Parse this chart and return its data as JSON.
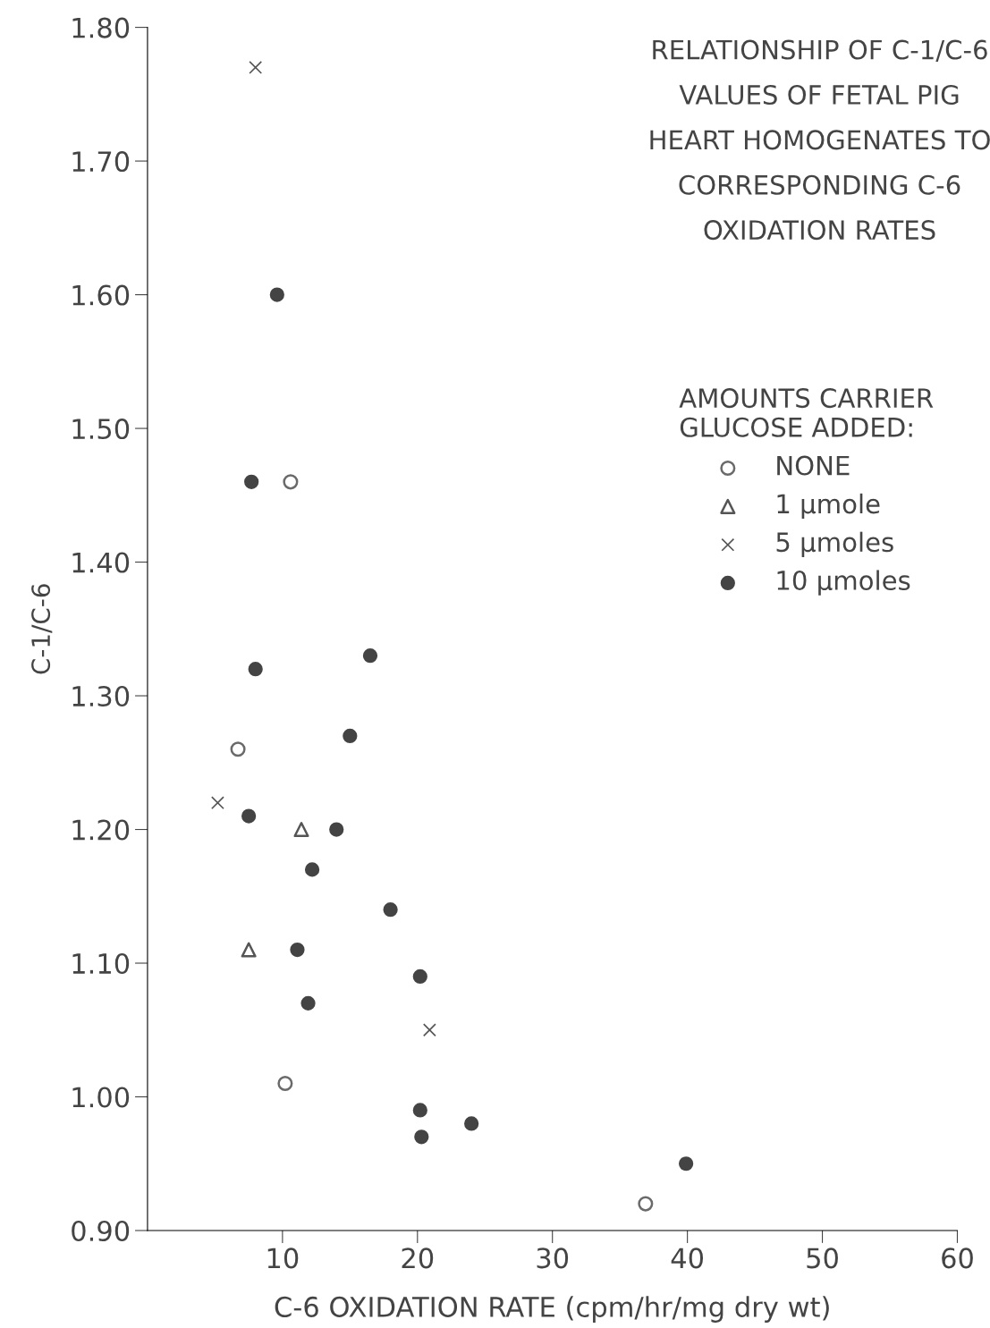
{
  "chart_data": {
    "type": "scatter",
    "title": "RELATIONSHIP OF C-1/C-6\nVALUES OF FETAL PIG\nHEART HOMOGENATES TO\nCORRESPONDING C-6\nOXIDATION RATES",
    "xlabel": "C-6 OXIDATION RATE (cpm/hr/mg dry wt)",
    "ylabel": "C-1/C-6",
    "legend_title": "AMOUNTS CARRIER\nGLUCOSE ADDED:",
    "legend": "top right",
    "xlim": [
      0,
      60
    ],
    "ylim": [
      0.9,
      1.8
    ],
    "xticks": [
      10,
      20,
      30,
      40,
      50,
      60
    ],
    "yticks": [
      {
        "value": 0.9,
        "label": "0.90"
      },
      {
        "value": 1.0,
        "label": "1.00"
      },
      {
        "value": 1.1,
        "label": "1.10"
      },
      {
        "value": 1.2,
        "label": "1.20"
      },
      {
        "value": 1.3,
        "label": "1.30"
      },
      {
        "value": 1.4,
        "label": "1.40"
      },
      {
        "value": 1.5,
        "label": "1.50"
      },
      {
        "value": 1.6,
        "label": "1.60"
      },
      {
        "value": 1.7,
        "label": "1.70"
      },
      {
        "value": 1.8,
        "label": "1.80"
      }
    ],
    "grid": false,
    "series": [
      {
        "name": "NONE",
        "color": "#6a6a6a",
        "marker": "circle",
        "x": [
          10.6,
          6.7,
          10.2,
          36.9
        ],
        "values": [
          1.46,
          1.26,
          1.01,
          0.92
        ]
      },
      {
        "name": "1 µmole",
        "color": "#555555",
        "marker": "triangle",
        "x": [
          11.4,
          7.5
        ],
        "values": [
          1.2,
          1.11
        ]
      },
      {
        "name": "5 µmoles",
        "color": "#555555",
        "marker": "cross",
        "x": [
          8.0,
          5.2,
          20.9
        ],
        "values": [
          1.77,
          1.22,
          1.05
        ]
      },
      {
        "name": "10 µmoles",
        "color": "#444444",
        "marker": "circle",
        "x": [
          9.6,
          7.7,
          8.0,
          16.5,
          15.0,
          7.5,
          14.0,
          12.2,
          18.0,
          11.1,
          11.9,
          20.2,
          20.2,
          20.3,
          24.0,
          39.9
        ],
        "values": [
          1.6,
          1.46,
          1.32,
          1.33,
          1.27,
          1.21,
          1.2,
          1.17,
          1.14,
          1.11,
          1.07,
          1.09,
          0.99,
          0.97,
          0.98,
          0.95
        ]
      }
    ]
  }
}
